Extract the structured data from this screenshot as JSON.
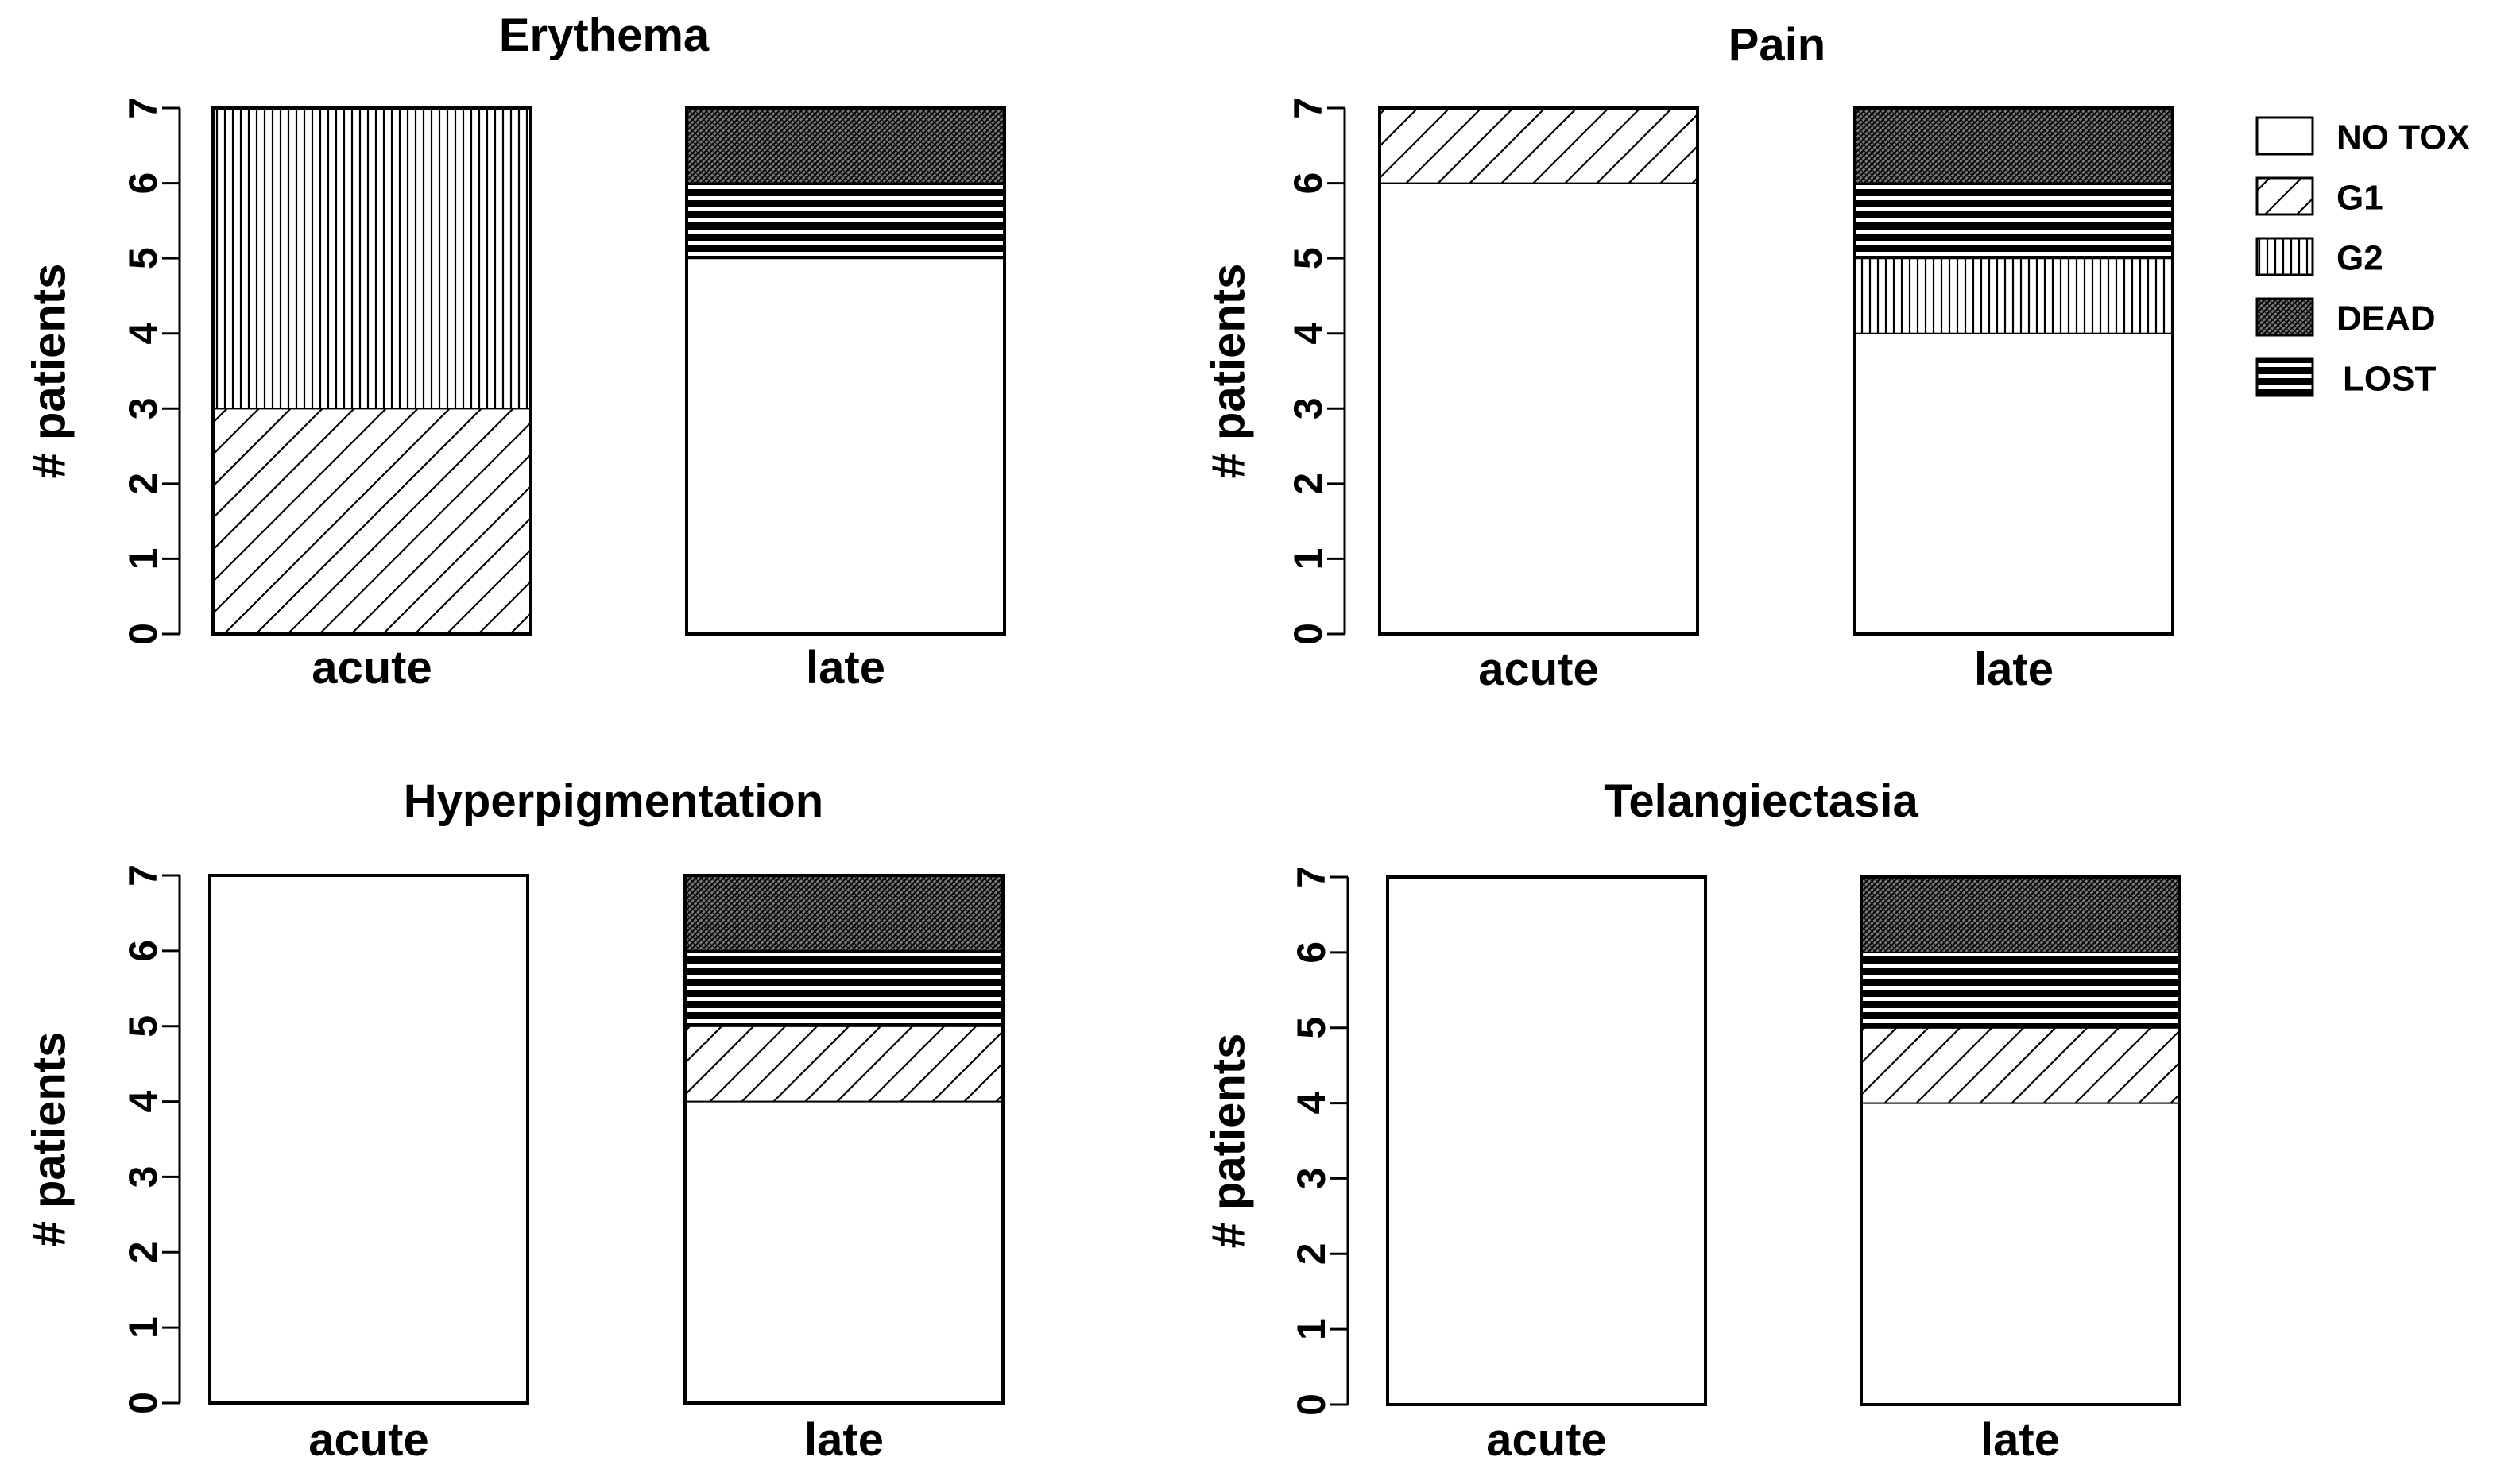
{
  "chart_data": [
    {
      "type": "bar",
      "title": "Erythema",
      "ylabel": "# patients",
      "xlabel": "",
      "ylim": [
        0,
        7
      ],
      "yticks": [
        0,
        1,
        2,
        3,
        4,
        5,
        6,
        7
      ],
      "categories": [
        "acute",
        "late"
      ],
      "stacked": true,
      "series": [
        {
          "name": "NO TOX",
          "values": [
            0,
            5
          ]
        },
        {
          "name": "G1",
          "values": [
            3,
            0
          ]
        },
        {
          "name": "G2",
          "values": [
            4,
            0
          ]
        },
        {
          "name": "LOST",
          "values": [
            0,
            1
          ]
        },
        {
          "name": "DEAD",
          "values": [
            0,
            1
          ]
        }
      ]
    },
    {
      "type": "bar",
      "title": "Pain",
      "ylabel": "# patients",
      "xlabel": "",
      "ylim": [
        0,
        7
      ],
      "yticks": [
        0,
        1,
        2,
        3,
        4,
        5,
        6,
        7
      ],
      "categories": [
        "acute",
        "late"
      ],
      "stacked": true,
      "series": [
        {
          "name": "NO TOX",
          "values": [
            6,
            4
          ]
        },
        {
          "name": "G1",
          "values": [
            1,
            0
          ]
        },
        {
          "name": "G2",
          "values": [
            0,
            1
          ]
        },
        {
          "name": "LOST",
          "values": [
            0,
            1
          ]
        },
        {
          "name": "DEAD",
          "values": [
            0,
            1
          ]
        }
      ]
    },
    {
      "type": "bar",
      "title": "Hyperpigmentation",
      "ylabel": "# patients",
      "xlabel": "",
      "ylim": [
        0,
        7
      ],
      "yticks": [
        0,
        1,
        2,
        3,
        4,
        5,
        6,
        7
      ],
      "categories": [
        "acute",
        "late"
      ],
      "stacked": true,
      "series": [
        {
          "name": "NO TOX",
          "values": [
            7,
            4
          ]
        },
        {
          "name": "G1",
          "values": [
            0,
            1
          ]
        },
        {
          "name": "G2",
          "values": [
            0,
            0
          ]
        },
        {
          "name": "LOST",
          "values": [
            0,
            1
          ]
        },
        {
          "name": "DEAD",
          "values": [
            0,
            1
          ]
        }
      ]
    },
    {
      "type": "bar",
      "title": "Telangiectasia",
      "ylabel": "# patients",
      "xlabel": "",
      "ylim": [
        0,
        7
      ],
      "yticks": [
        0,
        1,
        2,
        3,
        4,
        5,
        6,
        7
      ],
      "categories": [
        "acute",
        "late"
      ],
      "stacked": true,
      "series": [
        {
          "name": "NO TOX",
          "values": [
            7,
            4
          ]
        },
        {
          "name": "G1",
          "values": [
            0,
            1
          ]
        },
        {
          "name": "G2",
          "values": [
            0,
            0
          ]
        },
        {
          "name": "LOST",
          "values": [
            0,
            1
          ]
        },
        {
          "name": "DEAD",
          "values": [
            0,
            1
          ]
        }
      ]
    }
  ],
  "legend": {
    "placement": "top-right",
    "items": [
      {
        "key": "NO TOX",
        "label": "NO TOX",
        "pattern": "none"
      },
      {
        "key": "G1",
        "label": "G1",
        "pattern": "diagonal-hatch"
      },
      {
        "key": "G2",
        "label": "G2",
        "pattern": "vertical-lines"
      },
      {
        "key": "DEAD",
        "label": "DEAD",
        "pattern": "dense-crosshatch"
      },
      {
        "key": "LOST",
        "label": "LOST",
        "pattern": "horizontal-stripes"
      }
    ]
  },
  "colors": {
    "ink": "#000000",
    "background": "#ffffff"
  }
}
